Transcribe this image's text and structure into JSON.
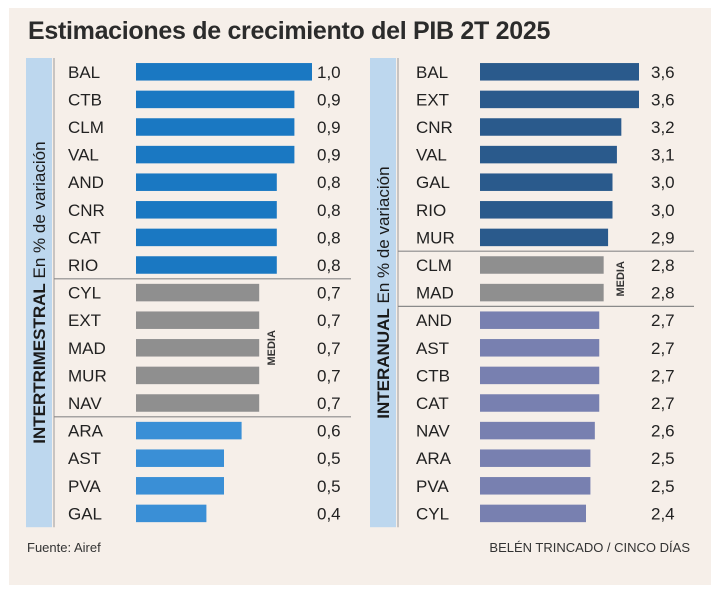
{
  "title": "Estimaciones de crecimiento del PIB 2T 2025",
  "source": "Fuente: Airef",
  "credit": "BELÉN TRINCADO / CINCO DÍAS",
  "colors": {
    "background": "#f6efe9",
    "axis_band": "#bdd7ee",
    "left_above": "#1a78c2",
    "left_media": "#8f8f8f",
    "left_below": "#3a8fd6",
    "right_above": "#2a5a8c",
    "right_media": "#8f8f8f",
    "right_below": "#7880b0"
  },
  "chart_data": [
    {
      "type": "bar",
      "orientation": "horizontal",
      "axis_label_bold": "INTERTRIMESTRAL",
      "axis_label_rest": "En % de variación",
      "media_label": "MEDIA",
      "xlim": [
        0,
        1.0
      ],
      "categories": [
        "BAL",
        "CTB",
        "CLM",
        "VAL",
        "AND",
        "CNR",
        "CAT",
        "RIO",
        "CYL",
        "EXT",
        "MAD",
        "MUR",
        "NAV",
        "ARA",
        "AST",
        "PVA",
        "GAL"
      ],
      "values": [
        1.0,
        0.9,
        0.9,
        0.9,
        0.8,
        0.8,
        0.8,
        0.8,
        0.7,
        0.7,
        0.7,
        0.7,
        0.7,
        0.6,
        0.5,
        0.5,
        0.4
      ],
      "value_labels": [
        "1,0",
        "0,9",
        "0,9",
        "0,9",
        "0,8",
        "0,8",
        "0,8",
        "0,8",
        "0,7",
        "0,7",
        "0,7",
        "0,7",
        "0,7",
        "0,6",
        "0,5",
        "0,5",
        "0,4"
      ],
      "groups": [
        "above",
        "above",
        "above",
        "above",
        "above",
        "above",
        "above",
        "above",
        "media",
        "media",
        "media",
        "media",
        "media",
        "below",
        "below",
        "below",
        "below"
      ]
    },
    {
      "type": "bar",
      "orientation": "horizontal",
      "axis_label_bold": "INTERANUAL",
      "axis_label_rest": "En % de variación",
      "media_label": "MEDIA",
      "xlim": [
        0,
        3.6
      ],
      "categories": [
        "BAL",
        "EXT",
        "CNR",
        "VAL",
        "GAL",
        "RIO",
        "MUR",
        "CLM",
        "MAD",
        "AND",
        "AST",
        "CTB",
        "CAT",
        "NAV",
        "ARA",
        "PVA",
        "CYL"
      ],
      "values": [
        3.6,
        3.6,
        3.2,
        3.1,
        3.0,
        3.0,
        2.9,
        2.8,
        2.8,
        2.7,
        2.7,
        2.7,
        2.7,
        2.6,
        2.5,
        2.5,
        2.4
      ],
      "value_labels": [
        "3,6",
        "3,6",
        "3,2",
        "3,1",
        "3,0",
        "3,0",
        "2,9",
        "2,8",
        "2,8",
        "2,7",
        "2,7",
        "2,7",
        "2,7",
        "2,6",
        "2,5",
        "2,5",
        "2,4"
      ],
      "groups": [
        "above",
        "above",
        "above",
        "above",
        "above",
        "above",
        "above",
        "media",
        "media",
        "below",
        "below",
        "below",
        "below",
        "below",
        "below",
        "below",
        "below"
      ]
    }
  ]
}
